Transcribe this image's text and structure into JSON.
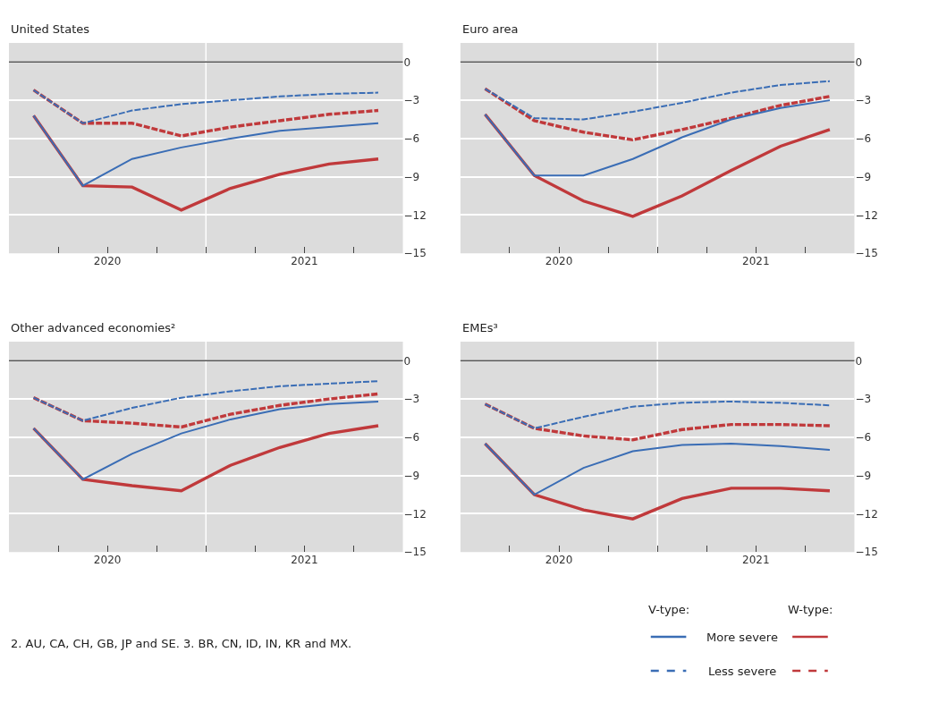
{
  "chart_data": [
    {
      "type": "line",
      "title": "United States",
      "x": [
        2020.125,
        2020.375,
        2020.625,
        2020.875,
        2021.125,
        2021.375,
        2021.625,
        2021.875
      ],
      "xlim": [
        2020,
        2022
      ],
      "xticks": [
        {
          "value": 2020,
          "label": null
        },
        {
          "value": 2020.25,
          "label": null
        },
        {
          "value": 2020.5,
          "label": "2020"
        },
        {
          "value": 2020.75,
          "label": null
        },
        {
          "value": 2021,
          "label": null
        },
        {
          "value": 2021.25,
          "label": null
        },
        {
          "value": 2021.5,
          "label": "2021"
        },
        {
          "value": 2021.75,
          "label": null
        },
        {
          "value": 2022,
          "label": null
        }
      ],
      "ylim": [
        -15,
        1.5
      ],
      "yticks": [
        0,
        -3,
        -6,
        -9,
        -12,
        -15
      ],
      "grid": "y",
      "ref_lines": [
        {
          "axis": "y",
          "value": 0,
          "color": "#555555"
        },
        {
          "axis": "x",
          "value": 2021,
          "color": "#ffffff"
        }
      ],
      "series": [
        {
          "color": "#3a6db5",
          "line_style": "solid",
          "values": [
            -4.2,
            -9.7,
            -7.6,
            -6.7,
            -6.0,
            -5.4,
            -5.1,
            -4.8
          ]
        },
        {
          "color": "#c0393b",
          "line_style": "solid",
          "values": [
            -4.2,
            -9.7,
            -9.8,
            -11.6,
            -9.9,
            -8.8,
            -8.0,
            -7.6
          ]
        },
        {
          "color": "#3a6db5",
          "line_style": "dashed",
          "values": [
            -2.2,
            -4.8,
            -3.8,
            -3.3,
            -3.0,
            -2.7,
            -2.5,
            -2.4
          ]
        },
        {
          "color": "#c0393b",
          "line_style": "dashed",
          "values": [
            -2.2,
            -4.8,
            -4.8,
            -5.8,
            -5.1,
            -4.6,
            -4.1,
            -3.8
          ]
        }
      ]
    },
    {
      "type": "line",
      "title": "Euro area",
      "x": [
        2020.125,
        2020.375,
        2020.625,
        2020.875,
        2021.125,
        2021.375,
        2021.625,
        2021.875
      ],
      "xlim": [
        2020,
        2022
      ],
      "xticks": [
        {
          "value": 2020,
          "label": null
        },
        {
          "value": 2020.25,
          "label": null
        },
        {
          "value": 2020.5,
          "label": "2020"
        },
        {
          "value": 2020.75,
          "label": null
        },
        {
          "value": 2021,
          "label": null
        },
        {
          "value": 2021.25,
          "label": null
        },
        {
          "value": 2021.5,
          "label": "2021"
        },
        {
          "value": 2021.75,
          "label": null
        },
        {
          "value": 2022,
          "label": null
        }
      ],
      "ylim": [
        -15,
        1.5
      ],
      "yticks": [
        0,
        -3,
        -6,
        -9,
        -12,
        -15
      ],
      "grid": "y",
      "ref_lines": [
        {
          "axis": "y",
          "value": 0,
          "color": "#555555"
        },
        {
          "axis": "x",
          "value": 2021,
          "color": "#ffffff"
        }
      ],
      "series": [
        {
          "color": "#3a6db5",
          "line_style": "solid",
          "values": [
            -4.1,
            -8.9,
            -8.9,
            -7.6,
            -5.9,
            -4.5,
            -3.6,
            -3.0
          ]
        },
        {
          "color": "#c0393b",
          "line_style": "solid",
          "values": [
            -4.1,
            -8.9,
            -10.9,
            -12.1,
            -10.5,
            -8.5,
            -6.6,
            -5.3
          ]
        },
        {
          "color": "#3a6db5",
          "line_style": "dashed",
          "values": [
            -2.1,
            -4.4,
            -4.5,
            -3.9,
            -3.2,
            -2.4,
            -1.8,
            -1.5
          ]
        },
        {
          "color": "#c0393b",
          "line_style": "dashed",
          "values": [
            -2.1,
            -4.6,
            -5.5,
            -6.1,
            -5.3,
            -4.4,
            -3.4,
            -2.7
          ]
        }
      ]
    },
    {
      "type": "line",
      "title": "Other advanced economies²",
      "x": [
        2020.125,
        2020.375,
        2020.625,
        2020.875,
        2021.125,
        2021.375,
        2021.625,
        2021.875
      ],
      "xlim": [
        2020,
        2022
      ],
      "xticks": [
        {
          "value": 2020,
          "label": null
        },
        {
          "value": 2020.25,
          "label": null
        },
        {
          "value": 2020.5,
          "label": "2020"
        },
        {
          "value": 2020.75,
          "label": null
        },
        {
          "value": 2021,
          "label": null
        },
        {
          "value": 2021.25,
          "label": null
        },
        {
          "value": 2021.5,
          "label": "2021"
        },
        {
          "value": 2021.75,
          "label": null
        },
        {
          "value": 2022,
          "label": null
        }
      ],
      "ylim": [
        -15,
        1.5
      ],
      "yticks": [
        0,
        -3,
        -6,
        -9,
        -12,
        -15
      ],
      "grid": "y",
      "ref_lines": [
        {
          "axis": "y",
          "value": 0,
          "color": "#555555"
        },
        {
          "axis": "x",
          "value": 2021,
          "color": "#ffffff"
        }
      ],
      "series": [
        {
          "color": "#3a6db5",
          "line_style": "solid",
          "values": [
            -5.3,
            -9.3,
            -7.3,
            -5.7,
            -4.6,
            -3.8,
            -3.4,
            -3.2
          ]
        },
        {
          "color": "#c0393b",
          "line_style": "solid",
          "values": [
            -5.3,
            -9.3,
            -9.8,
            -10.2,
            -8.2,
            -6.8,
            -5.7,
            -5.1
          ]
        },
        {
          "color": "#3a6db5",
          "line_style": "dashed",
          "values": [
            -2.9,
            -4.7,
            -3.7,
            -2.9,
            -2.4,
            -2.0,
            -1.8,
            -1.6
          ]
        },
        {
          "color": "#c0393b",
          "line_style": "dashed",
          "values": [
            -2.9,
            -4.7,
            -4.9,
            -5.2,
            -4.2,
            -3.5,
            -3.0,
            -2.6
          ]
        }
      ]
    },
    {
      "type": "line",
      "title": "EMEs³",
      "x": [
        2020.125,
        2020.375,
        2020.625,
        2020.875,
        2021.125,
        2021.375,
        2021.625,
        2021.875
      ],
      "xlim": [
        2020,
        2022
      ],
      "xticks": [
        {
          "value": 2020,
          "label": null
        },
        {
          "value": 2020.25,
          "label": null
        },
        {
          "value": 2020.5,
          "label": "2020"
        },
        {
          "value": 2020.75,
          "label": null
        },
        {
          "value": 2021,
          "label": null
        },
        {
          "value": 2021.25,
          "label": null
        },
        {
          "value": 2021.5,
          "label": "2021"
        },
        {
          "value": 2021.75,
          "label": null
        },
        {
          "value": 2022,
          "label": null
        }
      ],
      "ylim": [
        -15,
        1.5
      ],
      "yticks": [
        0,
        -3,
        -6,
        -9,
        -12,
        -15
      ],
      "grid": "y",
      "ref_lines": [
        {
          "axis": "y",
          "value": 0,
          "color": "#555555"
        },
        {
          "axis": "x",
          "value": 2021,
          "color": "#ffffff"
        }
      ],
      "series": [
        {
          "name": "More severe",
          "color": "#3a6db5",
          "line_style": "solid",
          "values": [
            -6.5,
            -10.5,
            -8.4,
            -7.1,
            -6.6,
            -6.5,
            -6.7,
            -7.0
          ]
        },
        {
          "color": "#c0393b",
          "line_style": "solid",
          "values": [
            -6.5,
            -10.5,
            -11.7,
            -12.4,
            -10.8,
            -10.0,
            -10.0,
            -10.2
          ]
        },
        {
          "name": "Less severe",
          "color": "#3a6db5",
          "line_style": "dashed",
          "values": [
            -3.4,
            -5.3,
            -4.4,
            -3.6,
            -3.3,
            -3.2,
            -3.3,
            -3.5
          ]
        },
        {
          "color": "#c0393b",
          "line_style": "dashed",
          "values": [
            -3.4,
            -5.3,
            -5.9,
            -6.2,
            -5.4,
            -5.0,
            -5.0,
            -5.1
          ]
        }
      ],
      "legend": "bottom right",
      "annotations": [
        "2. AU, CA, CH, GB, JP and SE. 3. BR, CN, ID, IN, KR and MX.",
        "V-type:",
        "W-type:"
      ]
    }
  ]
}
